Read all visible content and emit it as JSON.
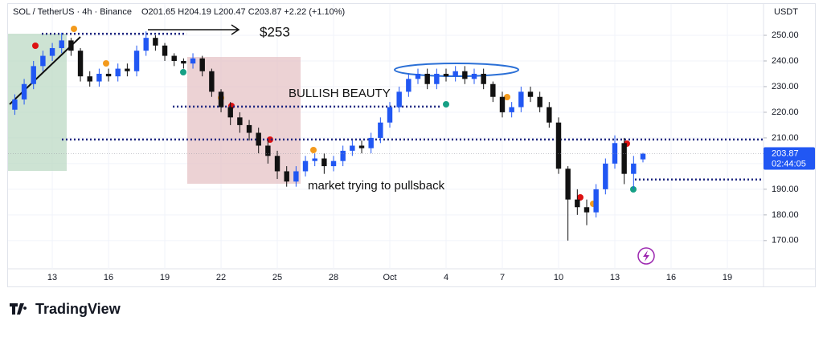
{
  "chart_data": {
    "type": "candlestick",
    "title": "SOL / TetherUS · 4h · Binance",
    "subtitle": "O201.65 H204.19 L200.47 C203.87 +2.22 (+1.10%)",
    "y_axis_label": "USDT",
    "brand": "TradingView",
    "x": [
      -2,
      -1.5,
      -1,
      -0.5,
      0,
      0.5,
      1,
      1.5,
      2,
      2.5,
      3,
      3.5,
      4,
      4.5,
      5,
      5.5,
      6,
      6.5,
      7,
      7.5,
      8,
      8.5,
      9,
      9.5,
      10,
      10.5,
      11,
      11.5,
      12,
      12.5,
      13,
      13.5,
      14,
      14.5,
      15,
      15.5,
      16,
      16.5,
      17,
      17.5,
      18,
      18.5,
      19,
      19.5,
      20,
      20.5,
      21,
      21.5,
      22,
      22.5,
      23,
      23.5,
      24,
      24.5,
      25,
      25.5,
      26,
      26.5,
      27,
      27.5,
      28,
      28.5,
      29,
      29.5,
      30,
      30.5,
      31,
      31.5
    ],
    "open": [
      221,
      225,
      231,
      238,
      242,
      245,
      248,
      244,
      234,
      232,
      235,
      234,
      237,
      236,
      244,
      249,
      246,
      242,
      240,
      239,
      241,
      236,
      228,
      222,
      218,
      215,
      212,
      207,
      203,
      197,
      193,
      197,
      201,
      202,
      199,
      201,
      205,
      207,
      206,
      210,
      216,
      222,
      228,
      233,
      235,
      231,
      235,
      234,
      236,
      233,
      235,
      231,
      226,
      220,
      222,
      228,
      226,
      222,
      216,
      198,
      186,
      183,
      181,
      190,
      200,
      208,
      196,
      201.65
    ],
    "high": [
      227,
      233,
      240,
      244,
      247,
      251,
      249,
      245,
      236,
      237,
      237,
      239,
      239,
      246,
      251.5,
      250,
      247,
      243,
      241,
      243,
      242,
      237,
      229,
      224,
      220,
      217,
      214,
      209,
      205,
      199,
      199,
      203,
      204,
      204,
      203,
      207,
      209,
      209,
      212,
      218,
      224,
      230,
      235,
      237,
      237,
      237,
      237,
      238,
      238,
      237,
      237,
      232,
      228,
      224,
      230,
      230,
      228,
      224,
      218,
      199,
      190,
      186,
      192,
      202,
      211,
      210,
      203,
      204.19
    ],
    "low": [
      219,
      223,
      229,
      236,
      240,
      243,
      242,
      232,
      230,
      230,
      232,
      232,
      234,
      234,
      242,
      244,
      240,
      238,
      237,
      237,
      234,
      226,
      220,
      215,
      212,
      209,
      204,
      200,
      194,
      191,
      191,
      195,
      199,
      196,
      197,
      199,
      203,
      204,
      204,
      208,
      214,
      220,
      226,
      231,
      229,
      229,
      232,
      232,
      231,
      231,
      229,
      224,
      218,
      218,
      220,
      224,
      220,
      214,
      196,
      170,
      180,
      176,
      179,
      188,
      198,
      192,
      190,
      200.47
    ],
    "close": [
      225,
      231,
      238,
      242,
      245,
      248,
      244,
      234,
      232,
      235,
      234,
      237,
      236,
      244,
      249,
      246,
      242,
      240,
      239,
      241,
      236,
      228,
      222,
      218,
      215,
      212,
      207,
      203,
      197,
      193,
      197,
      201,
      202,
      199,
      201,
      205,
      207,
      206,
      210,
      216,
      222,
      228,
      233,
      235,
      231,
      235,
      234,
      236,
      233,
      235,
      231,
      226,
      220,
      222,
      228,
      226,
      222,
      216,
      198,
      186,
      183,
      181,
      190,
      200,
      208,
      196,
      200,
      203.87
    ],
    "up_color": "#2157f3",
    "down_color": "#111111",
    "xlim": [
      -2.36,
      37.93
    ],
    "ylim": [
      159,
      255
    ],
    "xticks": [
      {
        "value": 0,
        "label": "13"
      },
      {
        "value": 3,
        "label": "16"
      },
      {
        "value": 6,
        "label": "19"
      },
      {
        "value": 9,
        "label": "22"
      },
      {
        "value": 12,
        "label": "25"
      },
      {
        "value": 15,
        "label": "28"
      },
      {
        "value": 18,
        "label": "Oct"
      },
      {
        "value": 21,
        "label": "4"
      },
      {
        "value": 24,
        "label": "7"
      },
      {
        "value": 27,
        "label": "10"
      },
      {
        "value": 30,
        "label": "13"
      },
      {
        "value": 33,
        "label": "16"
      },
      {
        "value": 36,
        "label": "19"
      }
    ],
    "yticks": [
      {
        "value": 170,
        "label": "170.00"
      },
      {
        "value": 180,
        "label": "180.00"
      },
      {
        "value": 190,
        "label": "190.00"
      },
      {
        "value": 200,
        "label": "200.00"
      },
      {
        "value": 210,
        "label": "210.00"
      },
      {
        "value": 220,
        "label": "220.00"
      },
      {
        "value": 230,
        "label": "230.00"
      },
      {
        "value": 240,
        "label": "240.00"
      },
      {
        "value": 250,
        "label": "250.00"
      }
    ],
    "levels": [
      {
        "price": 250.6,
        "from": -0.56,
        "to": 7.16
      },
      {
        "price": 222.2,
        "from": 6.43,
        "to": 20.7
      },
      {
        "price": 209.4,
        "from": 0.51,
        "to": 37.93
      },
      {
        "price": 193.8,
        "from": 31.07,
        "to": 37.93
      }
    ],
    "last_price": 203.87,
    "countdown": "02:44:05",
    "annotations": [
      "$253",
      "BULLISH BEAUTY",
      "market trying to pullsback"
    ]
  }
}
